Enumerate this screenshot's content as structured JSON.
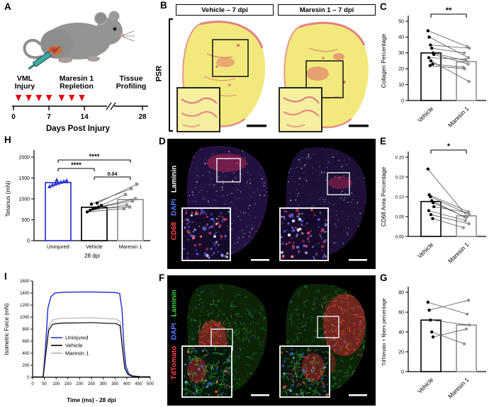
{
  "figure": {
    "panels": {
      "A": {
        "letter": "A",
        "timeline": {
          "phases": [
            {
              "line1": "VML",
              "line2": "Injury",
              "color": "#000000"
            },
            {
              "line1": "Maresin 1",
              "line2": "Repletion",
              "color": "#e8000d"
            },
            {
              "line1": "Tissue",
              "line2": "Profiling",
              "color": "#000000"
            }
          ],
          "axis_label": "Days Post Injury",
          "ticks": [
            {
              "day": 0,
              "label": "0"
            },
            {
              "day": 7,
              "label": "7"
            },
            {
              "day": 14,
              "label": "14"
            },
            {
              "day": 28,
              "label": "28"
            }
          ],
          "triangle_days": [
            1,
            3,
            5,
            7,
            9.5,
            11.5,
            13.5
          ],
          "triangle_color": "#e8000d"
        }
      },
      "B": {
        "letter": "B",
        "stain_label": "PSR",
        "headers": [
          "Vehicle – 7 dpi",
          "Maresin 1 – 7 dpi"
        ]
      },
      "C": {
        "letter": "C"
      },
      "D": {
        "letter": "D",
        "legend": [
          {
            "text": "CD68",
            "color": "#ff4450"
          },
          {
            "text": "DAPI",
            "color": "#5b7bff"
          },
          {
            "text": "Laminin",
            "color": "#ffffff"
          }
        ]
      },
      "E": {
        "letter": "E"
      },
      "F": {
        "letter": "F",
        "legend": [
          {
            "text": "TdTomato",
            "color": "#ff4450"
          },
          {
            "text": "DAPI",
            "color": "#5b7bff"
          },
          {
            "text": "Laminin",
            "color": "#46d34a"
          }
        ]
      },
      "G": {
        "letter": "G"
      },
      "H": {
        "letter": "H"
      },
      "I": {
        "letter": "I"
      }
    }
  },
  "chart_data": [
    {
      "id": "C",
      "type": "paired-bar",
      "ylabel": "Collagen Percentage",
      "ylim": [
        0,
        50
      ],
      "yticks": [
        0,
        10,
        20,
        30,
        40,
        50
      ],
      "ytick_decimals": 0,
      "categories": [
        "Vehicle",
        "Maresin 1"
      ],
      "bar_values": [
        30,
        24.5
      ],
      "bar_colors": [
        "#000000",
        "#8f8f8f"
      ],
      "pairs": [
        [
          44,
          34
        ],
        [
          40,
          27
        ],
        [
          35,
          33
        ],
        [
          33,
          30
        ],
        [
          30,
          25
        ],
        [
          29,
          23
        ],
        [
          27,
          26
        ],
        [
          25,
          12
        ],
        [
          23,
          21
        ],
        [
          22,
          20
        ]
      ],
      "sig": {
        "label": "**"
      }
    },
    {
      "id": "E",
      "type": "paired-bar",
      "ylabel": "CD68 Area Percentage",
      "ylim": [
        0,
        0.2
      ],
      "yticks": [
        0,
        0.05,
        0.1,
        0.15,
        0.2
      ],
      "ytick_decimals": 2,
      "categories": [
        "Vehicle",
        "Maresin 1"
      ],
      "bar_values": [
        0.088,
        0.052
      ],
      "bar_colors": [
        "#000000",
        "#8f8f8f"
      ],
      "pairs": [
        [
          0.17,
          0.05
        ],
        [
          0.105,
          0.062
        ],
        [
          0.1,
          0.055
        ],
        [
          0.09,
          0.05
        ],
        [
          0.085,
          0.048
        ],
        [
          0.075,
          0.06
        ],
        [
          0.065,
          0.04
        ],
        [
          0.055,
          0.032
        ],
        [
          0.045,
          0.022
        ]
      ],
      "sig": {
        "label": "*"
      }
    },
    {
      "id": "G",
      "type": "paired-bar",
      "ylabel": "TdTomato + fibers percentage",
      "ylim": [
        0,
        80
      ],
      "yticks": [
        0,
        20,
        40,
        60,
        80
      ],
      "ytick_decimals": 0,
      "categories": [
        "Vehicle",
        "Maresin 1"
      ],
      "bar_values": [
        52,
        47
      ],
      "bar_colors": [
        "#000000",
        "#8f8f8f"
      ],
      "pairs": [
        [
          70,
          58
        ],
        [
          62,
          72
        ],
        [
          52,
          47
        ],
        [
          40,
          28
        ],
        [
          35,
          43
        ]
      ],
      "sig": null
    },
    {
      "id": "H",
      "type": "group-bar",
      "ylabel": "Tetanus (mN)",
      "xlabel": "28 dpi",
      "ylim": [
        0,
        2000
      ],
      "yticks": [
        0,
        500,
        1000,
        1500,
        2000
      ],
      "categories": [
        "Uninjured",
        "Vehicle",
        "Maresin 1"
      ],
      "bar_values": [
        1390,
        800,
        985
      ],
      "bar_colors": [
        "#2a35cf",
        "#000000",
        "#8f8f8f"
      ],
      "point_shapes": [
        "triangle",
        "circle",
        "square"
      ],
      "uninjured_points": [
        1300,
        1335,
        1360,
        1385,
        1405,
        1420,
        1440,
        1455
      ],
      "pairs": [
        [
          690,
          765
        ],
        [
          725,
          855
        ],
        [
          760,
          805
        ],
        [
          785,
          950
        ],
        [
          805,
          1005
        ],
        [
          845,
          1105
        ],
        [
          875,
          1245
        ],
        [
          900,
          1350
        ]
      ],
      "sigs": [
        {
          "from": 0,
          "to": 2,
          "label": "****"
        },
        {
          "from": 0,
          "to": 1,
          "label": "****"
        },
        {
          "from": 1,
          "to": 2,
          "label": "0.04"
        }
      ]
    },
    {
      "id": "I",
      "type": "line",
      "ylabel": "Isometric Force (mN)",
      "xlabel": "Time (ms) - 28 dpi",
      "xlim": [
        0,
        500
      ],
      "xtick_step": 50,
      "ylim": [
        0,
        1600
      ],
      "ytick_step": 200,
      "series": [
        {
          "name": "Uninjured",
          "color": "#2a35cf",
          "points": [
            [
              0,
              5
            ],
            [
              45,
              5
            ],
            [
              55,
              520
            ],
            [
              65,
              1150
            ],
            [
              78,
              1340
            ],
            [
              95,
              1400
            ],
            [
              140,
              1415
            ],
            [
              260,
              1418
            ],
            [
              350,
              1408
            ],
            [
              370,
              1395
            ],
            [
              380,
              1120
            ],
            [
              388,
              520
            ],
            [
              396,
              190
            ],
            [
              408,
              60
            ],
            [
              425,
              22
            ],
            [
              460,
              10
            ],
            [
              500,
              8
            ]
          ]
        },
        {
          "name": "Maresin 1",
          "color": "#b5b5b5",
          "points": [
            [
              0,
              5
            ],
            [
              45,
              5
            ],
            [
              56,
              420
            ],
            [
              68,
              840
            ],
            [
              85,
              955
            ],
            [
              120,
              980
            ],
            [
              250,
              988
            ],
            [
              355,
              968
            ],
            [
              372,
              930
            ],
            [
              382,
              520
            ],
            [
              392,
              170
            ],
            [
              405,
              50
            ],
            [
              425,
              18
            ],
            [
              460,
              10
            ],
            [
              500,
              8
            ]
          ]
        },
        {
          "name": "Vehicle",
          "color": "#000000",
          "points": [
            [
              0,
              5
            ],
            [
              45,
              5
            ],
            [
              56,
              380
            ],
            [
              68,
              780
            ],
            [
              85,
              880
            ],
            [
              120,
              900
            ],
            [
              250,
              908
            ],
            [
              355,
              892
            ],
            [
              372,
              855
            ],
            [
              382,
              470
            ],
            [
              392,
              150
            ],
            [
              405,
              45
            ],
            [
              425,
              16
            ],
            [
              460,
              9
            ],
            [
              500,
              7
            ]
          ]
        }
      ],
      "legend_order": [
        "Uninjured",
        "Vehicle",
        "Maresin 1"
      ]
    }
  ]
}
